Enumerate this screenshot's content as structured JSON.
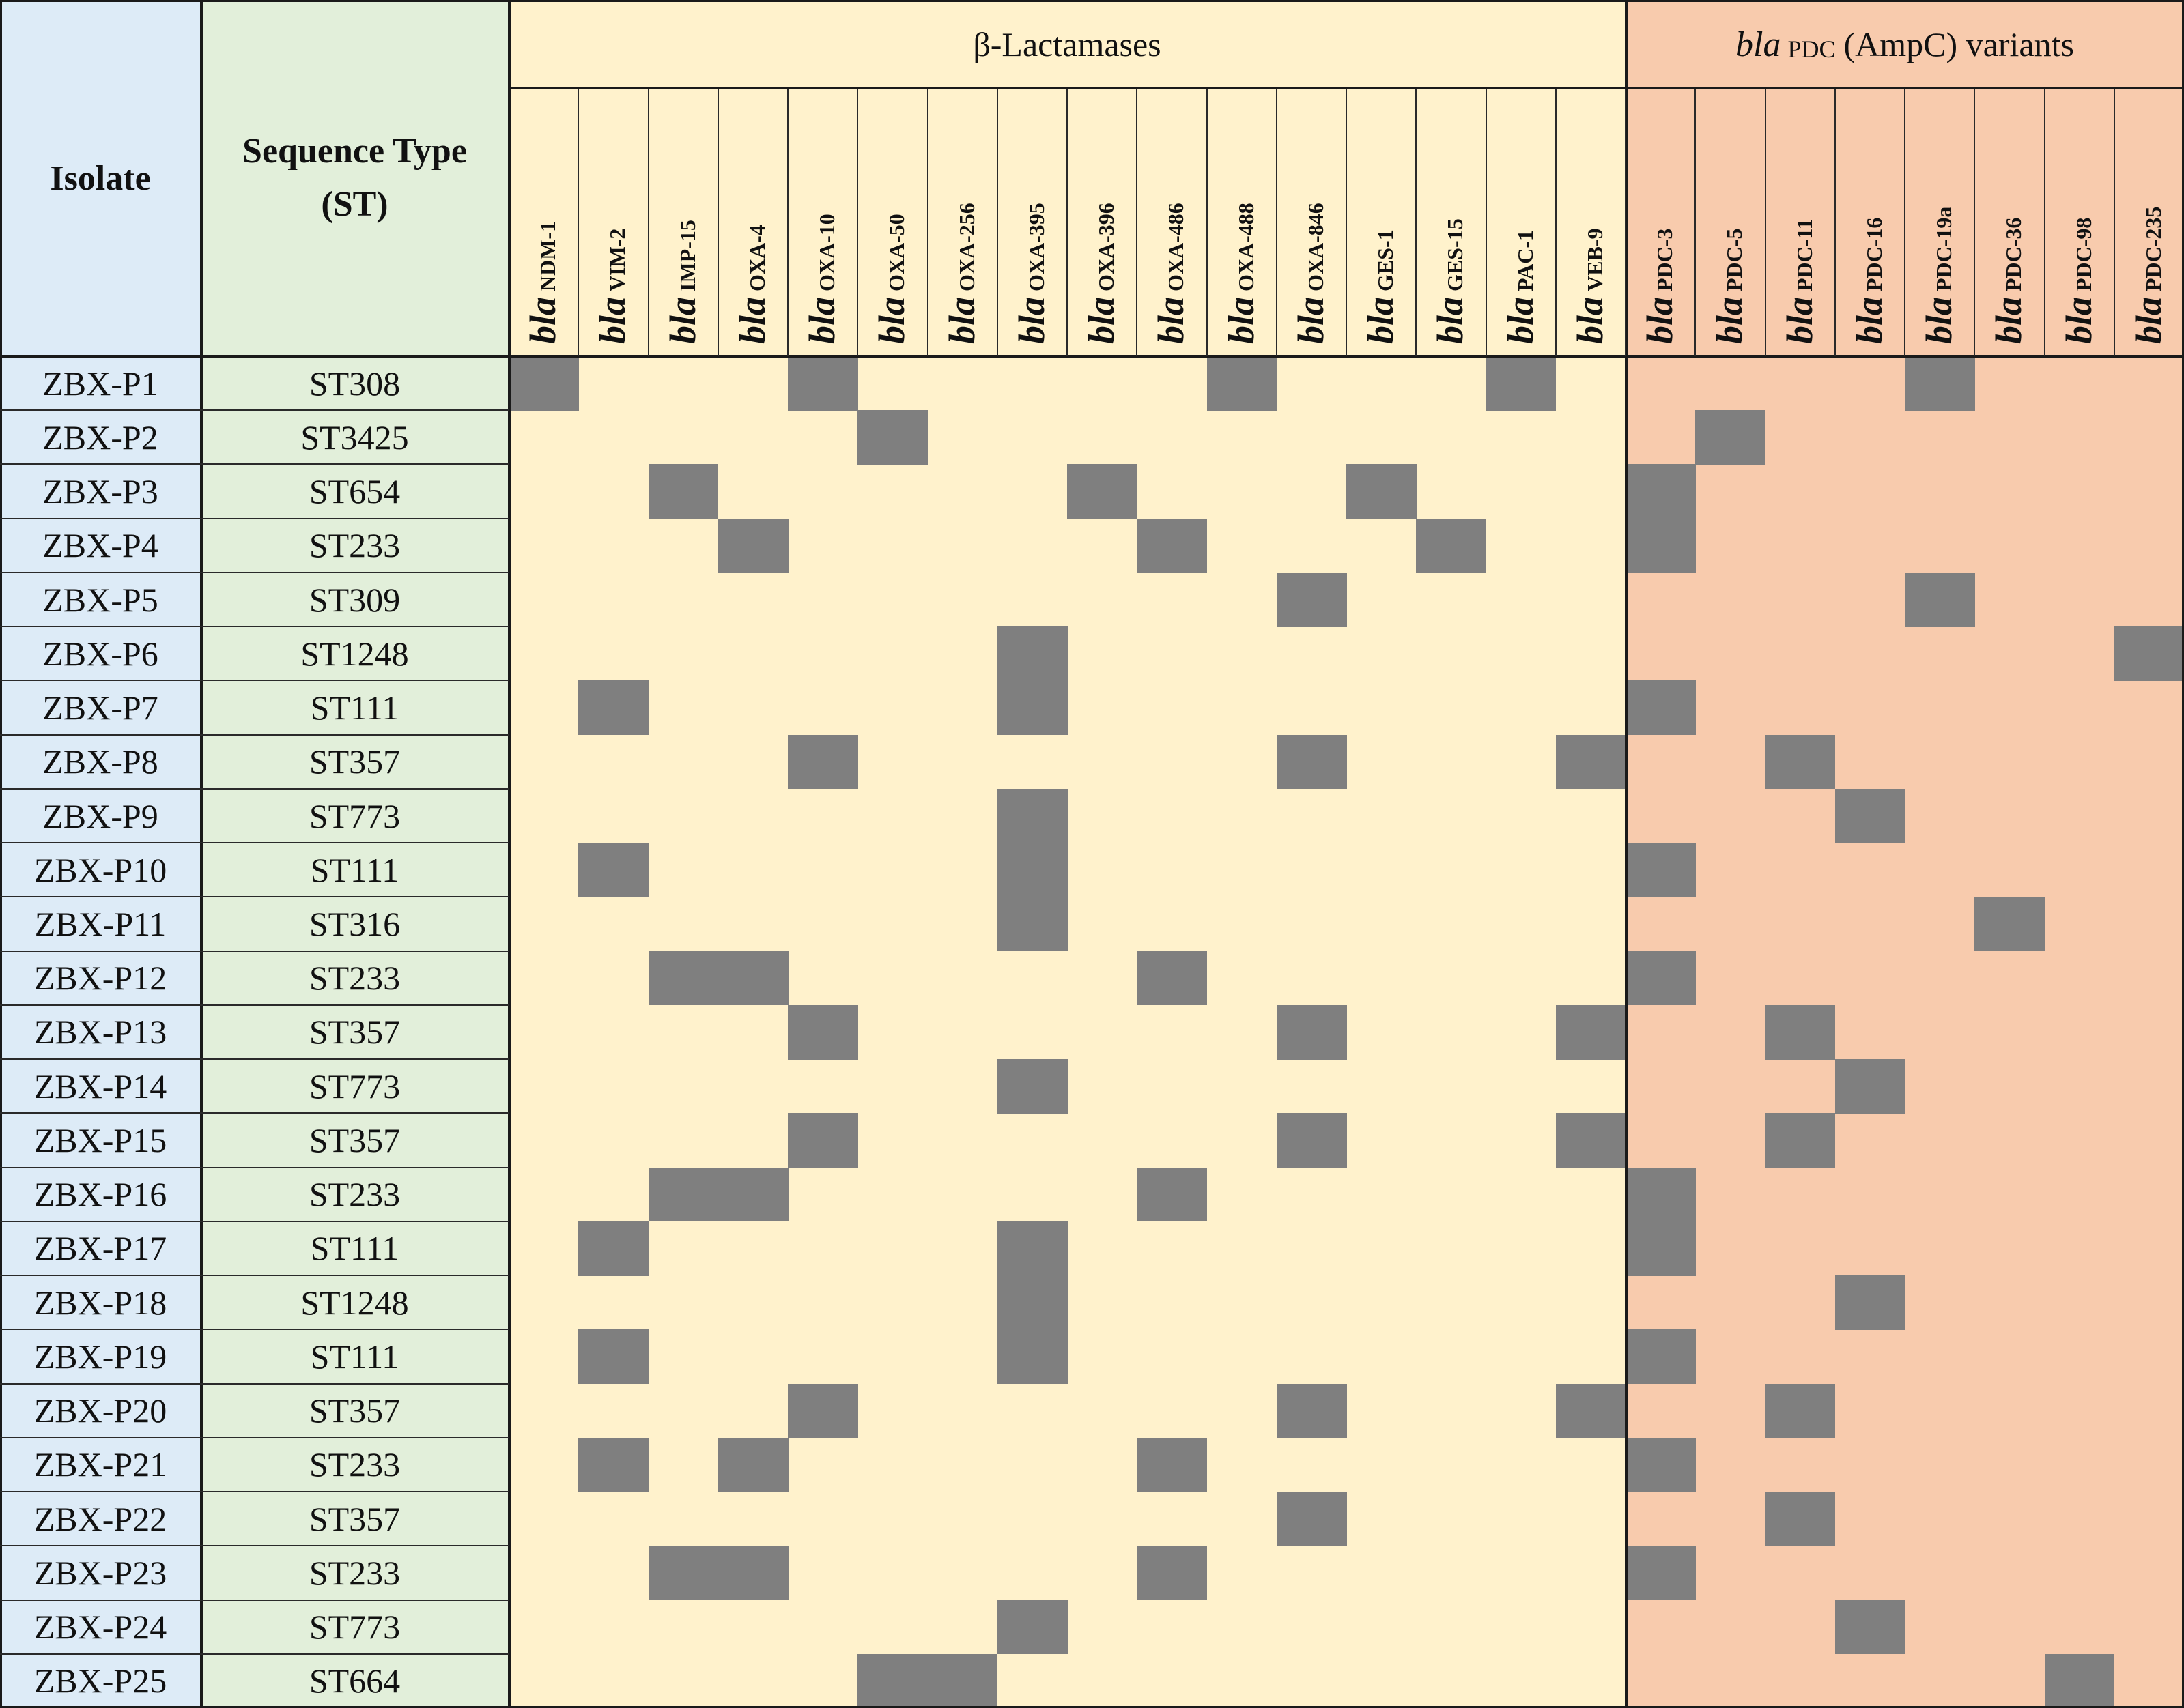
{
  "chart_data": {
    "type": "heatmap",
    "row_header": "Isolate",
    "st_header": [
      "Sequence Type",
      "(ST)"
    ],
    "groups": [
      {
        "name": "β-Lactamases",
        "label_italic": "",
        "label_sub": "",
        "label_rest": "β-Lactamases",
        "color": "#fff2cc"
      },
      {
        "name": "bla PDC (AmpC) variants",
        "label_italic": "bla",
        "label_sub": "PDC",
        "label_rest": "(AmpC) variants",
        "color": "#f8cbad"
      }
    ],
    "gene_prefix": "bla",
    "columns": [
      "NDM-1",
      "VIM-2",
      "IMP-15",
      "OXA-4",
      "OXA-10",
      "OXA-50",
      "OXA-256",
      "OXA-395",
      "OXA-396",
      "OXA-486",
      "OXA-488",
      "OXA-846",
      "GES-1",
      "GES-15",
      "PAC-1",
      "VEB-9",
      "PDC-3",
      "PDC-5",
      "PDC-11",
      "PDC-16",
      "PDC-19a",
      "PDC-36",
      "PDC-98",
      "PDC-235"
    ],
    "column_groups": [
      0,
      0,
      0,
      0,
      0,
      0,
      0,
      0,
      0,
      0,
      0,
      0,
      0,
      0,
      0,
      0,
      1,
      1,
      1,
      1,
      1,
      1,
      1,
      1
    ],
    "rows": [
      {
        "isolate": "ZBX-P1",
        "st": "ST308",
        "genes": [
          "NDM-1",
          "OXA-10",
          "OXA-488",
          "PAC-1",
          "PDC-19a"
        ]
      },
      {
        "isolate": "ZBX-P2",
        "st": "ST3425",
        "genes": [
          "OXA-50",
          "PDC-5"
        ]
      },
      {
        "isolate": "ZBX-P3",
        "st": "ST654",
        "genes": [
          "IMP-15",
          "OXA-396",
          "GES-1",
          "PDC-3"
        ]
      },
      {
        "isolate": "ZBX-P4",
        "st": "ST233",
        "genes": [
          "OXA-4",
          "OXA-486",
          "GES-15",
          "PDC-3"
        ]
      },
      {
        "isolate": "ZBX-P5",
        "st": "ST309",
        "genes": [
          "OXA-846",
          "PDC-19a"
        ]
      },
      {
        "isolate": "ZBX-P6",
        "st": "ST1248",
        "genes": [
          "OXA-395",
          "PDC-235"
        ]
      },
      {
        "isolate": "ZBX-P7",
        "st": "ST111",
        "genes": [
          "VIM-2",
          "OXA-395",
          "PDC-3"
        ]
      },
      {
        "isolate": "ZBX-P8",
        "st": "ST357",
        "genes": [
          "OXA-10",
          "OXA-846",
          "VEB-9",
          "PDC-11"
        ]
      },
      {
        "isolate": "ZBX-P9",
        "st": "ST773",
        "genes": [
          "OXA-395",
          "PDC-16"
        ]
      },
      {
        "isolate": "ZBX-P10",
        "st": "ST111",
        "genes": [
          "VIM-2",
          "OXA-395",
          "PDC-3"
        ]
      },
      {
        "isolate": "ZBX-P11",
        "st": "ST316",
        "genes": [
          "OXA-395",
          "PDC-36"
        ]
      },
      {
        "isolate": "ZBX-P12",
        "st": "ST233",
        "genes": [
          "IMP-15",
          "OXA-4",
          "OXA-486",
          "PDC-3"
        ]
      },
      {
        "isolate": "ZBX-P13",
        "st": "ST357",
        "genes": [
          "OXA-10",
          "OXA-846",
          "VEB-9",
          "PDC-11"
        ]
      },
      {
        "isolate": "ZBX-P14",
        "st": "ST773",
        "genes": [
          "OXA-395",
          "PDC-16"
        ]
      },
      {
        "isolate": "ZBX-P15",
        "st": "ST357",
        "genes": [
          "OXA-10",
          "OXA-846",
          "VEB-9",
          "PDC-11"
        ]
      },
      {
        "isolate": "ZBX-P16",
        "st": "ST233",
        "genes": [
          "IMP-15",
          "OXA-4",
          "OXA-486",
          "PDC-3"
        ]
      },
      {
        "isolate": "ZBX-P17",
        "st": "ST111",
        "genes": [
          "VIM-2",
          "OXA-395",
          "PDC-3"
        ]
      },
      {
        "isolate": "ZBX-P18",
        "st": "ST1248",
        "genes": [
          "OXA-395",
          "PDC-16"
        ]
      },
      {
        "isolate": "ZBX-P19",
        "st": "ST111",
        "genes": [
          "VIM-2",
          "OXA-395",
          "PDC-3"
        ]
      },
      {
        "isolate": "ZBX-P20",
        "st": "ST357",
        "genes": [
          "OXA-10",
          "OXA-846",
          "VEB-9",
          "PDC-11"
        ]
      },
      {
        "isolate": "ZBX-P21",
        "st": "ST233",
        "genes": [
          "VIM-2",
          "OXA-4",
          "OXA-486",
          "PDC-3"
        ]
      },
      {
        "isolate": "ZBX-P22",
        "st": "ST357",
        "genes": [
          "OXA-846",
          "PDC-11"
        ]
      },
      {
        "isolate": "ZBX-P23",
        "st": "ST233",
        "genes": [
          "IMP-15",
          "OXA-4",
          "OXA-486",
          "PDC-3"
        ]
      },
      {
        "isolate": "ZBX-P24",
        "st": "ST773",
        "genes": [
          "OXA-395",
          "PDC-16"
        ]
      },
      {
        "isolate": "ZBX-P25",
        "st": "ST664",
        "genes": [
          "OXA-50",
          "OXA-256",
          "PDC-98"
        ]
      }
    ],
    "colors": {
      "isolate_bg": "#ddebf7",
      "st_bg": "#e2efda",
      "present": "#7f7f7f",
      "grid": "#1a1a1a"
    }
  }
}
